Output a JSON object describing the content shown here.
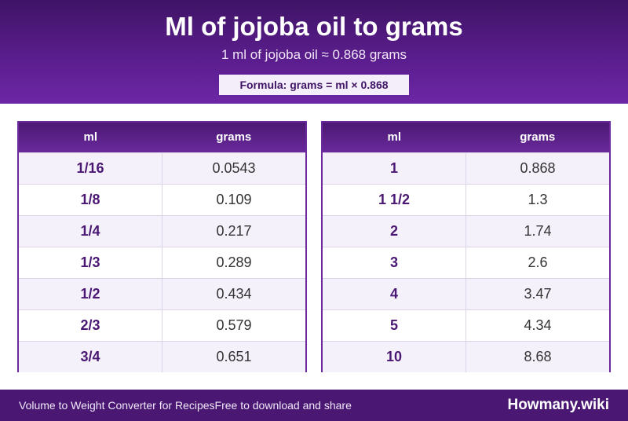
{
  "header": {
    "title": "Ml of jojoba oil to grams",
    "subtitle": "1 ml of jojoba oil ≈ 0.868 grams",
    "formula": "Formula: grams = ml × 0.868"
  },
  "columns": {
    "ml": "ml",
    "grams": "grams"
  },
  "left_table": [
    {
      "ml": "1/16",
      "grams": "0.0543"
    },
    {
      "ml": "1/8",
      "grams": "0.109"
    },
    {
      "ml": "1/4",
      "grams": "0.217"
    },
    {
      "ml": "1/3",
      "grams": "0.289"
    },
    {
      "ml": "1/2",
      "grams": "0.434"
    },
    {
      "ml": "2/3",
      "grams": "0.579"
    },
    {
      "ml": "3/4",
      "grams": "0.651"
    }
  ],
  "right_table": [
    {
      "ml": "1",
      "grams": "0.868"
    },
    {
      "ml": "1 1/2",
      "grams": "1.3"
    },
    {
      "ml": "2",
      "grams": "1.74"
    },
    {
      "ml": "3",
      "grams": "2.6"
    },
    {
      "ml": "4",
      "grams": "3.47"
    },
    {
      "ml": "5",
      "grams": "4.34"
    },
    {
      "ml": "10",
      "grams": "8.68"
    }
  ],
  "footer": {
    "tagline": "Volume to Weight Converter for Recipes",
    "note": "Free to download and share",
    "brand": "Howmany.wiki"
  }
}
